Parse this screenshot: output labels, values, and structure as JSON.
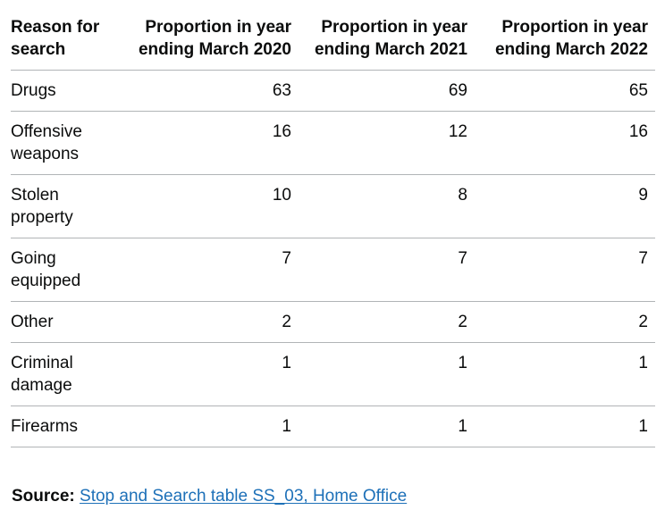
{
  "table": {
    "columns": [
      {
        "label": "Reason for search",
        "align": "left"
      },
      {
        "label": "Proportion in year ending March 2020",
        "align": "right"
      },
      {
        "label": "Proportion in year ending March 2021",
        "align": "right"
      },
      {
        "label": "Proportion in year ending March 2022",
        "align": "right"
      }
    ],
    "rows": [
      {
        "reason": "Drugs",
        "values": [
          "63",
          "69",
          "65"
        ]
      },
      {
        "reason": "Offensive weapons",
        "values": [
          "16",
          "12",
          "16"
        ]
      },
      {
        "reason": "Stolen property",
        "values": [
          "10",
          "8",
          "9"
        ]
      },
      {
        "reason": "Going equipped",
        "values": [
          "7",
          "7",
          "7"
        ]
      },
      {
        "reason": "Other",
        "values": [
          "2",
          "2",
          "2"
        ]
      },
      {
        "reason": "Criminal damage",
        "values": [
          "1",
          "1",
          "1"
        ]
      },
      {
        "reason": "Firearms",
        "values": [
          "1",
          "1",
          "1"
        ]
      }
    ]
  },
  "source": {
    "label": "Source:",
    "link_text": "Stop and Search table SS_03, Home Office"
  },
  "colors": {
    "text": "#0b0c0c",
    "border": "#b1b4b6",
    "link": "#1d70b8"
  },
  "chart_data": {
    "type": "table",
    "row_header_label": "Reason for search",
    "categories": [
      "Drugs",
      "Offensive weapons",
      "Stolen property",
      "Going equipped",
      "Other",
      "Criminal damage",
      "Firearms"
    ],
    "series": [
      {
        "name": "Proportion in year ending March 2020",
        "values": [
          63,
          16,
          10,
          7,
          2,
          1,
          1
        ]
      },
      {
        "name": "Proportion in year ending March 2021",
        "values": [
          69,
          12,
          8,
          7,
          2,
          1,
          1
        ]
      },
      {
        "name": "Proportion in year ending March 2022",
        "values": [
          65,
          16,
          9,
          7,
          2,
          1,
          1
        ]
      }
    ],
    "source_text": "Source: Stop and Search table SS_03, Home Office"
  }
}
